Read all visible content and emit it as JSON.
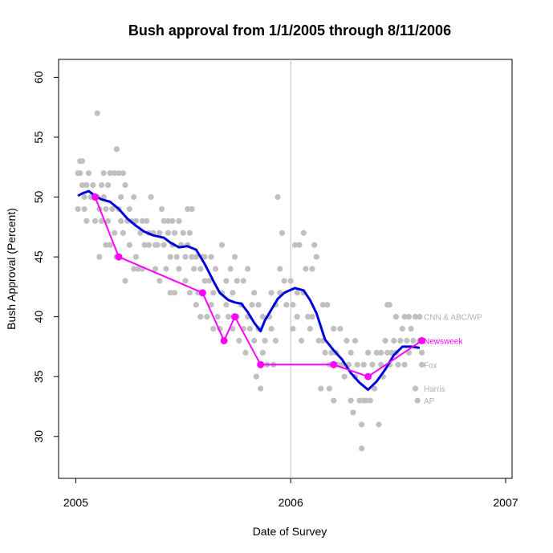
{
  "chart_data": {
    "type": "scatter",
    "title": "Bush approval from 1/1/2005 through 8/11/2006",
    "xlabel": "Date of Survey",
    "ylabel": "Bush Approval (Percent)",
    "xlim": [
      2004.92,
      2007.03
    ],
    "ylim": [
      26.5,
      61.5
    ],
    "x_ticks": [
      {
        "value": 2005,
        "label": "2005"
      },
      {
        "value": 2006,
        "label": "2006"
      },
      {
        "value": 2007,
        "label": "2007"
      }
    ],
    "y_ticks": [
      {
        "value": 30,
        "label": "30"
      },
      {
        "value": 35,
        "label": "35"
      },
      {
        "value": 40,
        "label": "40"
      },
      {
        "value": 45,
        "label": "45"
      },
      {
        "value": 50,
        "label": "50"
      },
      {
        "value": 55,
        "label": "55"
      },
      {
        "value": 60,
        "label": "60"
      }
    ],
    "reference_line": {
      "x": 2006,
      "color": "#c0c0c0"
    },
    "grid": false,
    "colors": {
      "polls": "#c0c0c0",
      "trend": "#0000dd",
      "newsweek": "#ff00ff",
      "label": "#b0b0b0"
    },
    "poll_points": [
      [
        2005.01,
        52
      ],
      [
        2005.01,
        49
      ],
      [
        2005.02,
        53
      ],
      [
        2005.02,
        52
      ],
      [
        2005.03,
        51
      ],
      [
        2005.03,
        53
      ],
      [
        2005.04,
        50
      ],
      [
        2005.04,
        49
      ],
      [
        2005.05,
        51
      ],
      [
        2005.05,
        48
      ],
      [
        2005.06,
        52
      ],
      [
        2005.07,
        50
      ],
      [
        2005.08,
        51
      ],
      [
        2005.09,
        48
      ],
      [
        2005.1,
        57
      ],
      [
        2005.1,
        50
      ],
      [
        2005.11,
        45
      ],
      [
        2005.11,
        49
      ],
      [
        2005.12,
        51
      ],
      [
        2005.12,
        48
      ],
      [
        2005.13,
        52
      ],
      [
        2005.13,
        50
      ],
      [
        2005.14,
        49
      ],
      [
        2005.14,
        46
      ],
      [
        2005.15,
        51
      ],
      [
        2005.15,
        48
      ],
      [
        2005.16,
        52
      ],
      [
        2005.16,
        46
      ],
      [
        2005.17,
        49
      ],
      [
        2005.18,
        52
      ],
      [
        2005.18,
        47
      ],
      [
        2005.19,
        45
      ],
      [
        2005.19,
        54
      ],
      [
        2005.2,
        49
      ],
      [
        2005.2,
        52
      ],
      [
        2005.21,
        48
      ],
      [
        2005.21,
        50
      ],
      [
        2005.22,
        52
      ],
      [
        2005.22,
        47
      ],
      [
        2005.23,
        51
      ],
      [
        2005.23,
        43
      ],
      [
        2005.24,
        48
      ],
      [
        2005.25,
        49
      ],
      [
        2005.25,
        46
      ],
      [
        2005.26,
        48
      ],
      [
        2005.27,
        44
      ],
      [
        2005.27,
        50
      ],
      [
        2005.28,
        45
      ],
      [
        2005.28,
        48
      ],
      [
        2005.29,
        44
      ],
      [
        2005.3,
        47
      ],
      [
        2005.31,
        44
      ],
      [
        2005.31,
        48
      ],
      [
        2005.32,
        46
      ],
      [
        2005.33,
        48
      ],
      [
        2005.34,
        47
      ],
      [
        2005.34,
        46
      ],
      [
        2005.35,
        50
      ],
      [
        2005.36,
        47
      ],
      [
        2005.37,
        46
      ],
      [
        2005.37,
        44
      ],
      [
        2005.38,
        46
      ],
      [
        2005.39,
        47
      ],
      [
        2005.39,
        43
      ],
      [
        2005.4,
        49
      ],
      [
        2005.41,
        46
      ],
      [
        2005.41,
        48
      ],
      [
        2005.42,
        44
      ],
      [
        2005.43,
        47
      ],
      [
        2005.43,
        48
      ],
      [
        2005.44,
        45
      ],
      [
        2005.44,
        42
      ],
      [
        2005.45,
        48
      ],
      [
        2005.45,
        46
      ],
      [
        2005.46,
        47
      ],
      [
        2005.46,
        42
      ],
      [
        2005.47,
        45
      ],
      [
        2005.48,
        48
      ],
      [
        2005.48,
        44
      ],
      [
        2005.49,
        46
      ],
      [
        2005.5,
        47
      ],
      [
        2005.51,
        45
      ],
      [
        2005.51,
        43
      ],
      [
        2005.52,
        49
      ],
      [
        2005.52,
        46
      ],
      [
        2005.53,
        47
      ],
      [
        2005.53,
        42
      ],
      [
        2005.54,
        45
      ],
      [
        2005.54,
        49
      ],
      [
        2005.55,
        44
      ],
      [
        2005.56,
        41
      ],
      [
        2005.56,
        45
      ],
      [
        2005.57,
        42
      ],
      [
        2005.58,
        44
      ],
      [
        2005.58,
        40
      ],
      [
        2005.59,
        45
      ],
      [
        2005.6,
        43
      ],
      [
        2005.6,
        45
      ],
      [
        2005.61,
        40
      ],
      [
        2005.62,
        43
      ],
      [
        2005.63,
        41
      ],
      [
        2005.63,
        45
      ],
      [
        2005.64,
        39
      ],
      [
        2005.64,
        42
      ],
      [
        2005.65,
        44
      ],
      [
        2005.66,
        40
      ],
      [
        2005.67,
        39
      ],
      [
        2005.68,
        46
      ],
      [
        2005.68,
        42
      ],
      [
        2005.69,
        38
      ],
      [
        2005.7,
        41
      ],
      [
        2005.7,
        43
      ],
      [
        2005.71,
        40
      ],
      [
        2005.72,
        44
      ],
      [
        2005.73,
        39
      ],
      [
        2005.73,
        42
      ],
      [
        2005.74,
        45
      ],
      [
        2005.75,
        40
      ],
      [
        2005.75,
        43
      ],
      [
        2005.76,
        38
      ],
      [
        2005.77,
        41
      ],
      [
        2005.78,
        43
      ],
      [
        2005.78,
        39
      ],
      [
        2005.79,
        37
      ],
      [
        2005.8,
        40
      ],
      [
        2005.8,
        44
      ],
      [
        2005.81,
        39
      ],
      [
        2005.82,
        41
      ],
      [
        2005.83,
        38
      ],
      [
        2005.83,
        42
      ],
      [
        2005.84,
        35
      ],
      [
        2005.85,
        39
      ],
      [
        2005.85,
        41
      ],
      [
        2005.86,
        34
      ],
      [
        2005.87,
        40
      ],
      [
        2005.87,
        37
      ],
      [
        2005.88,
        38
      ],
      [
        2005.89,
        36
      ],
      [
        2005.9,
        40
      ],
      [
        2005.91,
        42
      ],
      [
        2005.91,
        39
      ],
      [
        2005.92,
        36
      ],
      [
        2005.93,
        41
      ],
      [
        2005.93,
        38
      ],
      [
        2005.94,
        50
      ],
      [
        2005.95,
        44
      ],
      [
        2005.95,
        42
      ],
      [
        2005.96,
        47
      ],
      [
        2005.97,
        43
      ],
      [
        2005.98,
        41
      ],
      [
        2006.0,
        43
      ],
      [
        2006.01,
        41
      ],
      [
        2006.01,
        39
      ],
      [
        2006.02,
        46
      ],
      [
        2006.03,
        42
      ],
      [
        2006.03,
        40
      ],
      [
        2006.04,
        46
      ],
      [
        2006.05,
        38
      ],
      [
        2006.06,
        47
      ],
      [
        2006.06,
        42
      ],
      [
        2006.07,
        44
      ],
      [
        2006.08,
        40
      ],
      [
        2006.09,
        39
      ],
      [
        2006.1,
        44
      ],
      [
        2006.1,
        40
      ],
      [
        2006.11,
        46
      ],
      [
        2006.12,
        45
      ],
      [
        2006.13,
        38
      ],
      [
        2006.14,
        34
      ],
      [
        2006.15,
        41
      ],
      [
        2006.15,
        38
      ],
      [
        2006.16,
        37
      ],
      [
        2006.17,
        41
      ],
      [
        2006.18,
        36
      ],
      [
        2006.18,
        34
      ],
      [
        2006.19,
        37
      ],
      [
        2006.2,
        33
      ],
      [
        2006.2,
        39
      ],
      [
        2006.21,
        37
      ],
      [
        2006.22,
        36
      ],
      [
        2006.23,
        39
      ],
      [
        2006.24,
        36
      ],
      [
        2006.25,
        35
      ],
      [
        2006.26,
        38
      ],
      [
        2006.27,
        36
      ],
      [
        2006.28,
        37
      ],
      [
        2006.28,
        33
      ],
      [
        2006.29,
        32
      ],
      [
        2006.3,
        38
      ],
      [
        2006.3,
        35
      ],
      [
        2006.31,
        36
      ],
      [
        2006.32,
        33
      ],
      [
        2006.33,
        31
      ],
      [
        2006.33,
        29
      ],
      [
        2006.34,
        33
      ],
      [
        2006.34,
        36
      ],
      [
        2006.35,
        33
      ],
      [
        2006.36,
        37
      ],
      [
        2006.36,
        35
      ],
      [
        2006.37,
        33
      ],
      [
        2006.38,
        36
      ],
      [
        2006.39,
        34
      ],
      [
        2006.4,
        37
      ],
      [
        2006.41,
        31
      ],
      [
        2006.42,
        36
      ],
      [
        2006.42,
        37
      ],
      [
        2006.43,
        35
      ],
      [
        2006.44,
        38
      ],
      [
        2006.45,
        37
      ],
      [
        2006.45,
        41
      ],
      [
        2006.46,
        36
      ],
      [
        2006.46,
        41
      ],
      [
        2006.47,
        37
      ],
      [
        2006.48,
        38
      ],
      [
        2006.49,
        37
      ],
      [
        2006.49,
        40
      ],
      [
        2006.5,
        36
      ],
      [
        2006.51,
        38
      ],
      [
        2006.52,
        39
      ],
      [
        2006.53,
        40
      ],
      [
        2006.53,
        36
      ],
      [
        2006.54,
        38
      ],
      [
        2006.55,
        37
      ],
      [
        2006.55,
        40
      ],
      [
        2006.56,
        39
      ],
      [
        2006.57,
        38
      ],
      [
        2006.58,
        40
      ],
      [
        2006.58,
        34
      ],
      [
        2006.59,
        33
      ],
      [
        2006.6,
        38
      ],
      [
        2006.6,
        40
      ],
      [
        2006.61,
        37
      ],
      [
        2006.61,
        36
      ]
    ],
    "trend_line": [
      [
        2005.01,
        50.1
      ],
      [
        2005.03,
        50.3
      ],
      [
        2005.06,
        50.5
      ],
      [
        2005.09,
        50.1
      ],
      [
        2005.12,
        49.8
      ],
      [
        2005.16,
        49.6
      ],
      [
        2005.2,
        49.0
      ],
      [
        2005.24,
        48.2
      ],
      [
        2005.28,
        47.6
      ],
      [
        2005.32,
        47.1
      ],
      [
        2005.36,
        46.8
      ],
      [
        2005.41,
        46.6
      ],
      [
        2005.44,
        46.2
      ],
      [
        2005.48,
        45.8
      ],
      [
        2005.52,
        45.9
      ],
      [
        2005.56,
        45.6
      ],
      [
        2005.6,
        44.4
      ],
      [
        2005.64,
        43.0
      ],
      [
        2005.67,
        42.0
      ],
      [
        2005.71,
        41.4
      ],
      [
        2005.74,
        41.2
      ],
      [
        2005.77,
        41.1
      ],
      [
        2005.8,
        40.4
      ],
      [
        2005.83,
        39.5
      ],
      [
        2005.86,
        38.8
      ],
      [
        2005.88,
        39.7
      ],
      [
        2005.91,
        40.6
      ],
      [
        2005.94,
        41.5
      ],
      [
        2005.97,
        42.0
      ],
      [
        2006.02,
        42.4
      ],
      [
        2006.06,
        42.2
      ],
      [
        2006.09,
        41.4
      ],
      [
        2006.12,
        40.3
      ],
      [
        2006.16,
        38.1
      ],
      [
        2006.2,
        37.2
      ],
      [
        2006.24,
        36.4
      ],
      [
        2006.28,
        35.3
      ],
      [
        2006.32,
        34.5
      ],
      [
        2006.36,
        33.9
      ],
      [
        2006.4,
        34.6
      ],
      [
        2006.44,
        35.6
      ],
      [
        2006.48,
        36.8
      ],
      [
        2006.52,
        37.5
      ],
      [
        2006.56,
        37.5
      ],
      [
        2006.6,
        37.4
      ]
    ],
    "newsweek_series": [
      [
        2005.09,
        50
      ],
      [
        2005.2,
        45
      ],
      [
        2005.59,
        42
      ],
      [
        2005.69,
        38
      ],
      [
        2005.74,
        40
      ],
      [
        2005.86,
        36
      ],
      [
        2006.2,
        36
      ],
      [
        2006.36,
        35
      ],
      [
        2006.61,
        38
      ]
    ],
    "series_labels": [
      {
        "name": "CNN & ABC/WP",
        "y": 40,
        "highlight": false
      },
      {
        "name": "Newsweek",
        "y": 38,
        "highlight": true
      },
      {
        "name": "Fox",
        "y": 36,
        "highlight": false
      },
      {
        "name": "Harris",
        "y": 34,
        "highlight": false
      },
      {
        "name": "AP",
        "y": 33,
        "highlight": false
      }
    ]
  }
}
